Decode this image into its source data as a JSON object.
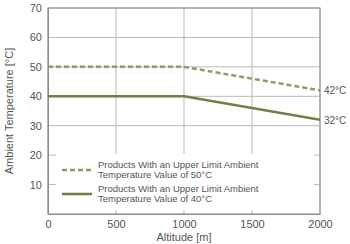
{
  "chart_data": {
    "type": "line",
    "x_label": "Altitude [m]",
    "y_label": "Ambient Temperature [°C]",
    "x": [
      0,
      1000,
      2000
    ],
    "series": [
      {
        "name": "Products With an Upper Limit Ambient Temperature Value of 50°C",
        "color": "#8d9c5f",
        "line_style": "dashed",
        "values": [
          50,
          50,
          42
        ]
      },
      {
        "name": "Products With an Upper Limit Ambient Temperature Value of 40°C",
        "color": "#6f7f45",
        "line_style": "solid",
        "values": [
          40,
          40,
          32
        ]
      }
    ],
    "xlim": [
      0,
      2000
    ],
    "ylim": [
      0,
      70
    ],
    "xticks": [
      0,
      500,
      1000,
      1500,
      2000
    ],
    "yticks": [
      10,
      20,
      30,
      40,
      50,
      60,
      70
    ],
    "grid": true,
    "legend": "lower right",
    "annotations": [
      {
        "text": "42°C",
        "x": 2000,
        "y": 42
      },
      {
        "text": "32°C",
        "x": 2000,
        "y": 32
      }
    ]
  }
}
